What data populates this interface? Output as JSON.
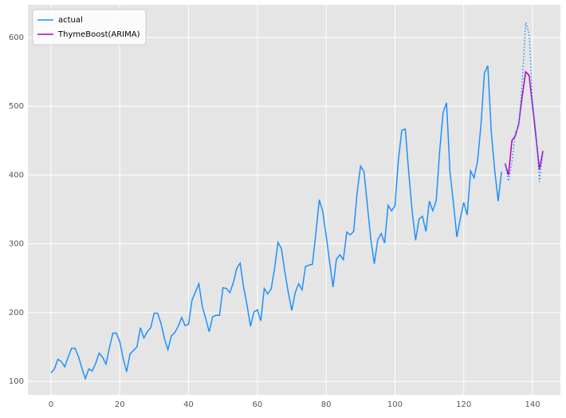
{
  "chart_data": {
    "type": "line",
    "xlim": [
      -6.7,
      148.1
    ],
    "ylim": [
      80.3,
      647.6
    ],
    "xticks": [
      0,
      20,
      40,
      60,
      80,
      100,
      120,
      140
    ],
    "yticks": [
      100,
      200,
      300,
      400,
      500,
      600
    ],
    "grid": true,
    "legend": "upper left",
    "series": [
      {
        "name": "actual",
        "color": "#1e90ff",
        "linestyle": "solid",
        "x": [
          0,
          1,
          2,
          3,
          4,
          5,
          6,
          7,
          8,
          9,
          10,
          11,
          12,
          13,
          14,
          15,
          16,
          17,
          18,
          19,
          20,
          21,
          22,
          23,
          24,
          25,
          26,
          27,
          28,
          29,
          30,
          31,
          32,
          33,
          34,
          35,
          36,
          37,
          38,
          39,
          40,
          41,
          42,
          43,
          44,
          45,
          46,
          47,
          48,
          49,
          50,
          51,
          52,
          53,
          54,
          55,
          56,
          57,
          58,
          59,
          60,
          61,
          62,
          63,
          64,
          65,
          66,
          67,
          68,
          69,
          70,
          71,
          72,
          73,
          74,
          75,
          76,
          77,
          78,
          79,
          80,
          81,
          82,
          83,
          84,
          85,
          86,
          87,
          88,
          89,
          90,
          91,
          92,
          93,
          94,
          95,
          96,
          97,
          98,
          99,
          100,
          101,
          102,
          103,
          104,
          105,
          106,
          107,
          108,
          109,
          110,
          111,
          112,
          113,
          114,
          115,
          116,
          117,
          118,
          119,
          120,
          121,
          122,
          123,
          124,
          125,
          126,
          127,
          128,
          129,
          130,
          131
        ],
        "values": [
          112,
          118,
          132,
          129,
          121,
          135,
          148,
          148,
          136,
          119,
          104,
          118,
          115,
          126,
          141,
          135,
          125,
          149,
          170,
          170,
          158,
          133,
          114,
          140,
          145,
          150,
          178,
          163,
          172,
          178,
          199,
          199,
          184,
          162,
          146,
          166,
          171,
          180,
          193,
          181,
          183,
          218,
          230,
          242,
          209,
          191,
          172,
          194,
          196,
          196,
          236,
          235,
          229,
          243,
          264,
          272,
          237,
          211,
          180,
          201,
          204,
          188,
          235,
          227,
          234,
          264,
          302,
          293,
          259,
          229,
          203,
          229,
          242,
          233,
          267,
          269,
          270,
          315,
          364,
          347,
          312,
          274,
          237,
          278,
          284,
          277,
          317,
          313,
          318,
          374,
          413,
          405,
          355,
          306,
          271,
          306,
          315,
          301,
          356,
          348,
          355,
          422,
          465,
          467,
          404,
          347,
          305,
          336,
          340,
          318,
          362,
          348,
          363,
          435,
          491,
          505,
          404,
          359,
          310,
          337,
          360,
          342,
          406,
          396,
          420,
          472,
          548,
          559,
          463,
          407,
          362,
          405
        ]
      },
      {
        "name": "ThymeBoost(ARIMA)",
        "color": "#b000c0",
        "linestyle": "solid",
        "x": [
          132,
          133,
          134,
          135,
          136,
          137,
          138,
          139,
          140,
          141,
          142,
          143
        ],
        "values": [
          417,
          400,
          450,
          457,
          475,
          515,
          550,
          545,
          500,
          455,
          408,
          435
        ]
      },
      {
        "color": "#1e90ff",
        "linestyle": "dotted",
        "x": [
          132,
          133,
          134,
          135,
          136,
          137,
          138,
          139,
          140,
          141,
          142,
          143
        ],
        "values": [
          417,
          391,
          419,
          461,
          472,
          535,
          622,
          606,
          508,
          461,
          390,
          432
        ]
      }
    ]
  }
}
